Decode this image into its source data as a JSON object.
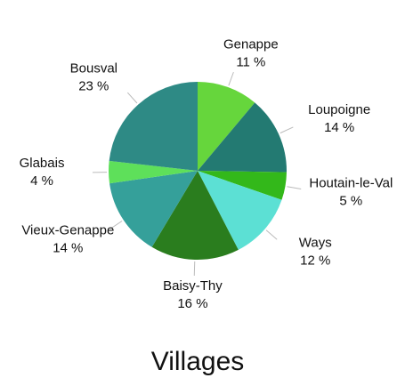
{
  "chart_data": {
    "type": "pie",
    "title": "Villages",
    "categories": [
      "Genappe",
      "Loupoigne",
      "Houtain-le-Val",
      "Ways",
      "Baisy-Thy",
      "Vieux-Genappe",
      "Glabais",
      "Bousval"
    ],
    "values": [
      11,
      14,
      5,
      12,
      16,
      14,
      4,
      23
    ],
    "value_labels": [
      "11 %",
      "14 %",
      "5 %",
      "12 %",
      "16 %",
      "14 %",
      "4 %",
      "23 %"
    ],
    "colors": [
      "#66d63c",
      "#237a72",
      "#33b81a",
      "#5ce0d4",
      "#2a7d1e",
      "#35a09a",
      "#5ee05a",
      "#2e8a85"
    ]
  }
}
